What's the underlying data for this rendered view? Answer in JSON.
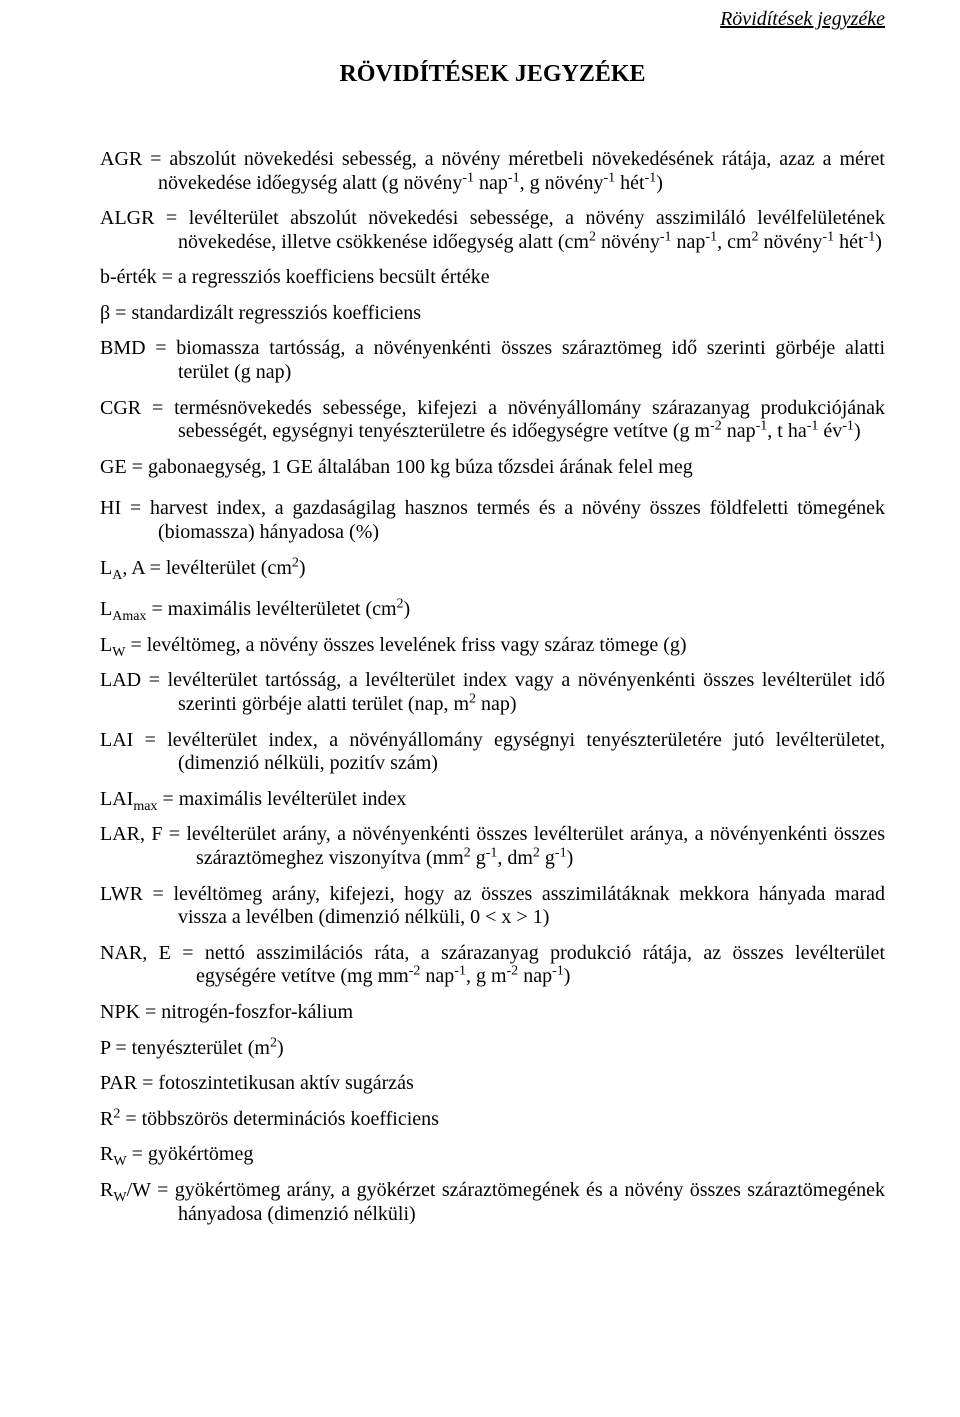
{
  "header": {
    "running_title": "Rövidítések jegyzéke",
    "main_title": "RÖVIDÍTÉSEK JEGYZÉKE"
  },
  "colors": {
    "text": "#000000",
    "background": "#ffffff"
  },
  "typography": {
    "body_font_family": "Times New Roman",
    "body_font_size_pt": 12,
    "title_font_size_pt": 14
  },
  "entries": [
    {
      "key": "AGR",
      "html": "AGR = abszolút növekedési sebesség, a növény méretbeli növekedésének rátája, azaz a méret növekedése időegység alatt (g növény<sup>-1</sup> nap<sup>-1</sup>, g növény<sup>-1</sup> hét<sup>-1</sup>)",
      "cls": "hang"
    },
    {
      "key": "ALGR",
      "html": "ALGR = levélterület abszolút növekedési sebessége, a növény asszimiláló levélfelületének növekedése, illetve csökkenése időegység alatt (cm<sup>2</sup> növény<sup>-1</sup> nap<sup>-1</sup>, cm<sup>2</sup> növény<sup>-1</sup> hét<sup>-1</sup>)",
      "cls": "hang-big"
    },
    {
      "key": "b-ertek",
      "html": "b-érték = a regressziós koefficiens becsült értéke",
      "cls": ""
    },
    {
      "key": "beta",
      "html": "β = standardizált regressziós koefficiens",
      "cls": ""
    },
    {
      "key": "BMD",
      "html": "BMD = biomassza tartósság, a növényenkénti összes száraztömeg idő szerinti görbéje alatti terület (g nap)",
      "cls": "hang-big"
    },
    {
      "key": "CGR",
      "html": "CGR = termésnövekedés sebessége, kifejezi a növényállomány szárazanyag produkciójának sebességét, egységnyi tenyészterületre és időegységre vetítve (g m<sup>-2</sup> nap<sup>-1</sup>, t ha<sup>-1</sup> év<sup>-1</sup>)",
      "cls": "hang-big"
    },
    {
      "key": "GE",
      "html": "GE = gabonaegység, 1 GE általában 100 kg búza tőzsdei árának felel meg",
      "cls": ""
    },
    {
      "key": "HI",
      "html": "HI = harvest index, a gazdaságilag hasznos termés és a növény összes földfeletti tömegének (biomassza) hányadosa (%)",
      "cls": "hang gap"
    },
    {
      "key": "LA",
      "html": "L<sub>A</sub>, A = levélterület (cm<sup>2</sup>)",
      "cls": ""
    },
    {
      "key": "LAmax",
      "html": "L<sub>Amax</sub> = maximális levélterületet (cm<sup>2</sup>)",
      "cls": "gap"
    },
    {
      "key": "LW",
      "html": "L<sub>W</sub> = levéltömeg, a növény összes levelének friss vagy száraz tömege (g)",
      "cls": ""
    },
    {
      "key": "LAD",
      "html": "LAD = levélterület tartósság, a levélterület index vagy a növényenkénti összes levélterület idő szerinti görbéje alatti terület (nap, m<sup>2</sup> nap)",
      "cls": "hang-big"
    },
    {
      "key": "LAI",
      "html": "LAI = levélterület index, a növényállomány egységnyi tenyészterületére jutó levélterületet, (dimenzió nélküli, pozitív szám)",
      "cls": "hang-big"
    },
    {
      "key": "LAImax",
      "html": "LAI<sub>max</sub> = maximális levélterület index",
      "cls": ""
    },
    {
      "key": "LAR",
      "html": "LAR, F = levélterület arány, a növényenkénti összes levélterület aránya, a növényenkénti összes száraztömeghez viszonyítva (mm<sup>2</sup> g<sup>-1</sup>, dm<sup>2</sup> g<sup>-1</sup>)",
      "cls": "hang-giant"
    },
    {
      "key": "LWR",
      "html": "LWR = levéltömeg arány, kifejezi, hogy az összes asszimilátáknak mekkora hányada marad vissza a levélben (dimenzió nélküli, 0 &lt; x &gt; 1)",
      "cls": "hang-big"
    },
    {
      "key": "NAR",
      "html": "NAR, E = nettó asszimilációs ráta, a szárazanyag produkció rátája, az összes levélterület egységére vetítve (mg mm<sup>-2</sup> nap<sup>-1</sup>, g m<sup>-2</sup> nap<sup>-1</sup>)",
      "cls": "hang-giant"
    },
    {
      "key": "NPK",
      "html": "NPK = nitrogén-foszfor-kálium",
      "cls": ""
    },
    {
      "key": "P",
      "html": "P = tenyészterület (m<sup>2</sup>)",
      "cls": ""
    },
    {
      "key": "PAR",
      "html": "PAR = fotoszintetikusan aktív sugárzás",
      "cls": ""
    },
    {
      "key": "R2",
      "html": "R<sup>2</sup> = többszörös determinációs koefficiens",
      "cls": ""
    },
    {
      "key": "RW",
      "html": "R<sub>W</sub> = gyökértömeg",
      "cls": ""
    },
    {
      "key": "RWW",
      "html": "R<sub>W</sub>/W = gyökértömeg arány, a gyökérzet száraztömegének és a növény összes száraztömegének hányadosa (dimenzió nélküli)",
      "cls": "hang-big"
    }
  ]
}
